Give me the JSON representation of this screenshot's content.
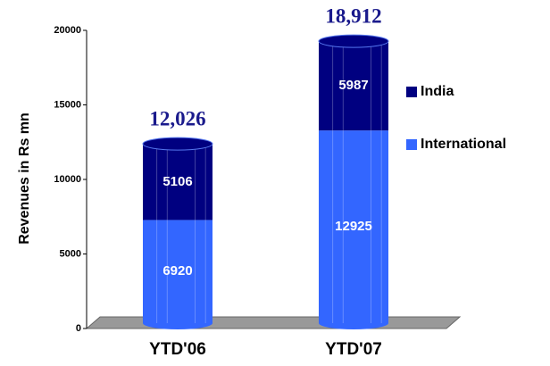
{
  "chart_data": {
    "type": "stacked_bar",
    "y_label": "Revenues in Rs mn",
    "categories": [
      "YTD'06",
      "YTD'07"
    ],
    "series": [
      {
        "name": "International",
        "color": "#3366ff",
        "values": [
          6920,
          12925
        ]
      },
      {
        "name": "India",
        "color": "#000080",
        "values": [
          5106,
          5987
        ]
      }
    ],
    "totals": [
      12026,
      18912
    ],
    "total_labels": [
      "12,026",
      "18,912"
    ],
    "ylim": [
      0,
      20000
    ],
    "yticks": [
      0,
      5000,
      10000,
      15000,
      20000
    ],
    "legend": "right"
  }
}
